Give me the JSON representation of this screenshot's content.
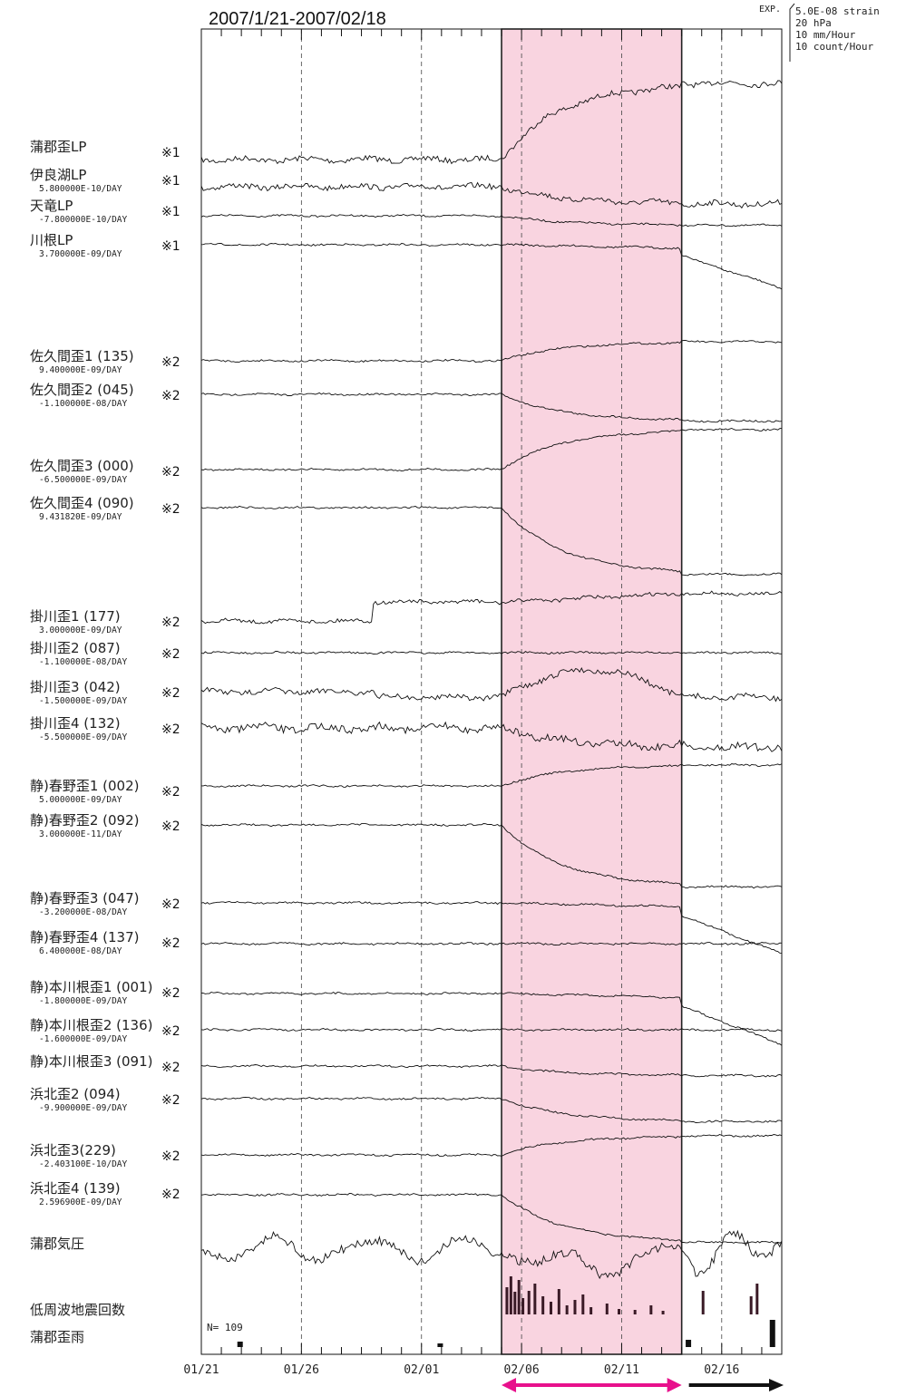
{
  "chart_data": {
    "type": "line",
    "title": "2007/1/21-2007/02/18",
    "scale_legend": {
      "label": "EXP.",
      "lines": [
        "5.0E-08 strain",
        "20 hPa",
        "10 mm/Hour",
        "10 count/Hour"
      ]
    },
    "x_ticks": [
      "01/21",
      "01/26",
      "02/01",
      "02/06",
      "02/11",
      "02/16"
    ],
    "x_tick_days": [
      0,
      5,
      11,
      16,
      21,
      26
    ],
    "x_range_days": [
      0,
      29
    ],
    "highlight_days": [
      15,
      24
    ],
    "highlight_color": "#f9d4e0",
    "arrow_pink_color": "#e8108c",
    "arrow_black_color": "#111111",
    "n_label": "N=  109",
    "series": [
      {
        "name": "蒲郡歪LP",
        "rate": "",
        "ref": "※1",
        "shape": "rise",
        "amp": 80,
        "noise": 3
      },
      {
        "name": "伊良湖LP",
        "rate": "5.800000E-10/DAY",
        "ref": "※1",
        "shape": "fall",
        "amp": 18,
        "noise": 3
      },
      {
        "name": "天竜LP",
        "rate": "-7.800000E-10/DAY",
        "ref": "※1",
        "shape": "fall",
        "amp": 10,
        "noise": 1
      },
      {
        "name": "川根LP",
        "rate": "3.700000E-09/DAY",
        "ref": "※1",
        "shape": "dropend",
        "amp": 12,
        "noise": 1
      },
      {
        "name": "佐久間歪1 (135)",
        "rate": "9.400000E-09/DAY",
        "ref": "※2",
        "shape": "rise",
        "amp": 20,
        "noise": 1
      },
      {
        "name": "佐久間歪2 (045)",
        "rate": "-1.100000E-08/DAY",
        "ref": "※2",
        "shape": "fall",
        "amp": 28,
        "noise": 1
      },
      {
        "name": "佐久間歪3 (000)",
        "rate": "-6.500000E-09/DAY",
        "ref": "※2",
        "shape": "rise",
        "amp": 42,
        "noise": 1
      },
      {
        "name": "佐久間歪4 (090)",
        "rate": "9.431820E-09/DAY",
        "ref": "※2",
        "shape": "fall",
        "amp": 70,
        "noise": 1
      },
      {
        "name": "掛川歪1 (177)",
        "rate": "3.000000E-09/DAY",
        "ref": "※2",
        "shape": "stepup",
        "amp": 30,
        "noise": 2
      },
      {
        "name": "掛川歪2 (087)",
        "rate": "-1.100000E-08/DAY",
        "ref": "※2",
        "shape": "flat",
        "amp": 6,
        "noise": 1
      },
      {
        "name": "掛川歪3 (042)",
        "rate": "-1.500000E-09/DAY",
        "ref": "※2",
        "shape": "bump",
        "amp": 30,
        "noise": 3
      },
      {
        "name": "掛川歪4 (132)",
        "rate": "-5.500000E-09/DAY",
        "ref": "※2",
        "shape": "fall",
        "amp": 20,
        "noise": 4
      },
      {
        "name": "静)春野歪1 (002)",
        "rate": "5.000000E-09/DAY",
        "ref": "※2",
        "shape": "rise",
        "amp": 22,
        "noise": 1
      },
      {
        "name": "静)春野歪2 (092)",
        "rate": "3.000000E-11/DAY",
        "ref": "※2",
        "shape": "fall",
        "amp": 65,
        "noise": 1
      },
      {
        "name": "静)春野歪3 (047)",
        "rate": "-3.200000E-08/DAY",
        "ref": "※2",
        "shape": "dropend",
        "amp": 14,
        "noise": 1
      },
      {
        "name": "静)春野歪4 (137)",
        "rate": "6.400000E-08/DAY",
        "ref": "※2",
        "shape": "flat",
        "amp": 6,
        "noise": 1
      },
      {
        "name": "静)本川根歪1 (001)",
        "rate": "-1.800000E-09/DAY",
        "ref": "※2",
        "shape": "dropend",
        "amp": 14,
        "noise": 1
      },
      {
        "name": "静)本川根歪2 (136)",
        "rate": "-1.600000E-09/DAY",
        "ref": "※2",
        "shape": "flat",
        "amp": 8,
        "noise": 1
      },
      {
        "name": "静)本川根歪3 (091)",
        "rate": "",
        "ref": "※2",
        "shape": "fall",
        "amp": 10,
        "noise": 1
      },
      {
        "name": "浜北歪2 (094)",
        "rate": "-9.900000E-09/DAY",
        "ref": "※2",
        "shape": "fall",
        "amp": 24,
        "noise": 1
      },
      {
        "name": "浜北歪3(229)",
        "rate": "-2.403100E-10/DAY",
        "ref": "※2",
        "shape": "rise",
        "amp": 20,
        "noise": 1
      },
      {
        "name": "浜北歪4 (139)",
        "rate": "2.596900E-09/DAY",
        "ref": "※2",
        "shape": "fall",
        "amp": 50,
        "noise": 1
      },
      {
        "name": "蒲郡気圧",
        "rate": "",
        "ref": "",
        "shape": "pressure",
        "amp": 22,
        "noise": 5
      },
      {
        "name": "低周波地震回数",
        "rate": "",
        "ref": "",
        "shape": "bars",
        "amp": 0,
        "noise": 0
      },
      {
        "name": "蒲郡歪雨",
        "rate": "",
        "ref": "",
        "shape": "rain",
        "amp": 0,
        "noise": 0
      }
    ]
  }
}
